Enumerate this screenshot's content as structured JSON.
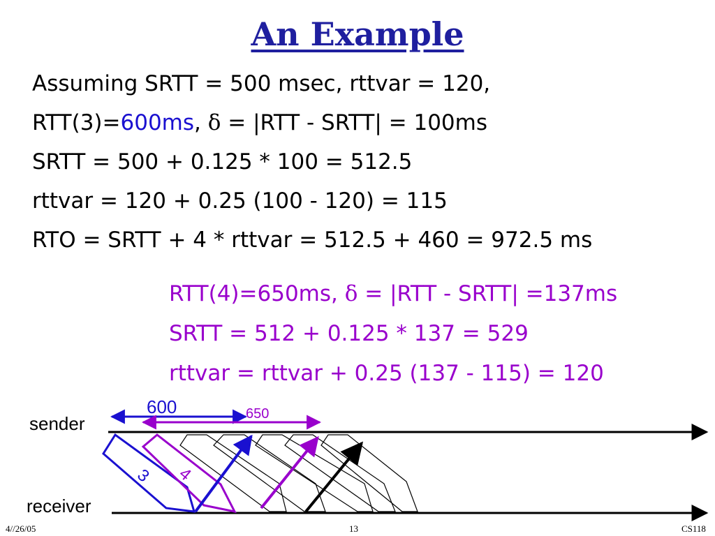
{
  "slide": {
    "title": "An Example",
    "lines": [
      {
        "text": "Assuming SRTT = 500 msec, rttvar = 120,"
      },
      {
        "pre": "RTT(3)=",
        "highlight": "600ms",
        "mid": ",",
        "delta": "δ",
        "post": " = |RTT - SRTT| = 100ms"
      },
      {
        "text": "SRTT = 500 + 0.125 * 100 = 512.5"
      },
      {
        "text": "rttvar = 120 + 0.25 (100 - 120) = 115"
      },
      {
        "text": "RTO = SRTT + 4 * rttvar = 512.5 + 460 = 972.5 ms"
      }
    ],
    "lines2": [
      {
        "pre": "RTT(4)=650ms, ",
        "delta": "δ",
        "post": " = |RTT - SRTT| =137ms"
      },
      {
        "text": "SRTT = 512 + 0.125 * 137 = 529"
      },
      {
        "text": "rttvar = rttvar + 0.25 (137 - 115) = 120"
      }
    ]
  },
  "diagram": {
    "sender_label": "sender",
    "receiver_label": "receiver",
    "rtt3_label": "600",
    "rtt4_label": "650",
    "packet3_label": "3",
    "packet4_label": "4",
    "colors": {
      "blue": "#1a10d0",
      "purple": "#9900cc",
      "black": "#000000"
    }
  },
  "footer": {
    "date": "4//26/05",
    "page": "13",
    "course": "CS118"
  }
}
